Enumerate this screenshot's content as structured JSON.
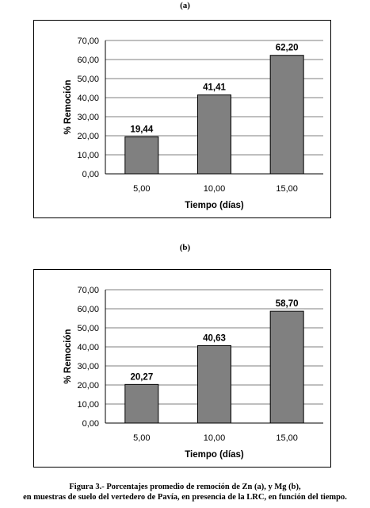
{
  "panel_labels": [
    "(a)",
    "(b)"
  ],
  "caption": {
    "line1": "Figura 3.- Porcentajes promedio de remoción de Zn (a), y Mg (b),",
    "line2": "en muestras de suelo del vertedero de Pavía, en presencia de la LRC, en función del tiempo."
  },
  "chart_data": [
    {
      "type": "bar",
      "categories": [
        "5,00",
        "10,00",
        "15,00"
      ],
      "values": [
        19.44,
        41.41,
        62.2
      ],
      "data_labels": [
        "19,44",
        "41,41",
        "62,20"
      ],
      "xlabel": "Tiempo (días)",
      "ylabel": "% Remoción",
      "ylim": [
        0,
        70
      ],
      "yticks": [
        "0,00",
        "10,00",
        "20,00",
        "30,00",
        "40,00",
        "50,00",
        "60,00",
        "70,00"
      ],
      "grid": true,
      "bar_color": "#808080"
    },
    {
      "type": "bar",
      "categories": [
        "5,00",
        "10,00",
        "15,00"
      ],
      "values": [
        20.27,
        40.63,
        58.7
      ],
      "data_labels": [
        "20,27",
        "40,63",
        "58,70"
      ],
      "xlabel": "Tiempo (días)",
      "ylabel": "% Remoción",
      "ylim": [
        0,
        70
      ],
      "yticks": [
        "0,00",
        "10,00",
        "20,00",
        "30,00",
        "40,00",
        "50,00",
        "60,00",
        "70,00"
      ],
      "grid": true,
      "bar_color": "#808080"
    }
  ]
}
